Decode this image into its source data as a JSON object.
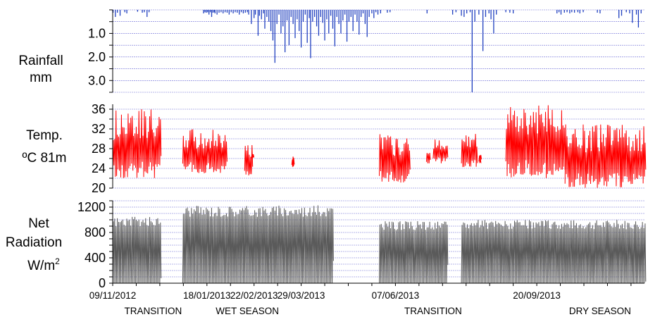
{
  "chart_data": [
    {
      "type": "bar",
      "panel_label_lines": [
        "Rainfall",
        "mm"
      ],
      "yticks": [
        "1.0",
        "2.0",
        "3.0"
      ],
      "ytick_values": [
        1.0,
        2.0,
        3.0
      ],
      "ylim": [
        0,
        3.5
      ],
      "inverted": true,
      "grid": true,
      "series": [
        {
          "color": "#1f3fbf",
          "points": [
            [
              0.3,
              0.12
            ],
            [
              2.0,
              0.3
            ],
            [
              3.5,
              0.12
            ],
            [
              5.5,
              0.25
            ],
            [
              9.0,
              0.1
            ],
            [
              10.5,
              0.15
            ],
            [
              18.5,
              0.08
            ],
            [
              22.0,
              0.12
            ],
            [
              23.5,
              0.1
            ],
            [
              25.5,
              0.3
            ],
            [
              27.0,
              0.1
            ],
            [
              67.5,
              0.15
            ],
            [
              68.5,
              0.1
            ],
            [
              69.5,
              0.12
            ],
            [
              70.5,
              0.1
            ],
            [
              71.5,
              0.2
            ],
            [
              72.5,
              0.1
            ],
            [
              73.5,
              0.3
            ],
            [
              74.5,
              0.12
            ],
            [
              75.5,
              0.1
            ],
            [
              76.0,
              0.15
            ],
            [
              77.5,
              0.2
            ],
            [
              79.0,
              0.12
            ],
            [
              80.5,
              0.1
            ],
            [
              82.0,
              0.15
            ],
            [
              83.5,
              0.1
            ],
            [
              85.0,
              0.12
            ],
            [
              86.5,
              0.2
            ],
            [
              88.0,
              0.1
            ],
            [
              89.5,
              0.15
            ],
            [
              91.0,
              0.1
            ],
            [
              92.5,
              0.12
            ],
            [
              94.0,
              0.2
            ],
            [
              95.5,
              0.1
            ],
            [
              97.0,
              0.15
            ],
            [
              98.5,
              0.12
            ],
            [
              100.0,
              0.1
            ],
            [
              101.0,
              0.2
            ],
            [
              103.0,
              0.6
            ],
            [
              105.0,
              0.35
            ],
            [
              106.0,
              0.2
            ],
            [
              108.0,
              1.1
            ],
            [
              109.0,
              0.25
            ],
            [
              110.5,
              0.4
            ],
            [
              112.0,
              0.15
            ],
            [
              113.0,
              0.8
            ],
            [
              114.5,
              0.3
            ],
            [
              116.0,
              0.5
            ],
            [
              117.5,
              0.9
            ],
            [
              119.0,
              1.3
            ],
            [
              120.5,
              2.25
            ],
            [
              122.0,
              0.6
            ],
            [
              123.5,
              0.2
            ],
            [
              125.0,
              1.0
            ],
            [
              126.5,
              0.7
            ],
            [
              128.0,
              1.8
            ],
            [
              129.5,
              0.45
            ],
            [
              131.0,
              1.5
            ],
            [
              132.5,
              0.3
            ],
            [
              134.0,
              0.6
            ],
            [
              135.5,
              1.2
            ],
            [
              137.0,
              0.4
            ],
            [
              138.5,
              0.9
            ],
            [
              140.0,
              1.6
            ],
            [
              141.5,
              0.5
            ],
            [
              143.0,
              0.2
            ],
            [
              144.5,
              1.4
            ],
            [
              146.0,
              0.35
            ],
            [
              147.0,
              2.05
            ],
            [
              148.5,
              0.5
            ],
            [
              150.0,
              0.3
            ],
            [
              151.5,
              0.7
            ],
            [
              153.0,
              1.1
            ],
            [
              154.5,
              0.3
            ],
            [
              156.0,
              0.55
            ],
            [
              157.5,
              1.3
            ],
            [
              159.0,
              0.4
            ],
            [
              160.5,
              1.0
            ],
            [
              162.0,
              0.25
            ],
            [
              163.5,
              0.8
            ],
            [
              165.0,
              1.55
            ],
            [
              166.5,
              0.3
            ],
            [
              168.0,
              0.6
            ],
            [
              169.5,
              1.0
            ],
            [
              171.0,
              0.45
            ],
            [
              172.5,
              0.2
            ],
            [
              174.0,
              1.35
            ],
            [
              175.5,
              0.5
            ],
            [
              177.0,
              0.3
            ],
            [
              178.5,
              0.9
            ],
            [
              180.0,
              0.2
            ],
            [
              181.5,
              0.5
            ],
            [
              183.0,
              1.05
            ],
            [
              184.5,
              0.3
            ],
            [
              186.0,
              0.15
            ],
            [
              187.5,
              0.6
            ],
            [
              189.0,
              1.15
            ],
            [
              190.5,
              0.3
            ],
            [
              192.5,
              0.15
            ],
            [
              194.0,
              0.35
            ],
            [
              195.5,
              0.1
            ],
            [
              197.0,
              0.2
            ],
            [
              199.0,
              0.15
            ],
            [
              204.0,
              0.12
            ],
            [
              206.0,
              0.1
            ],
            [
              233.5,
              0.15
            ],
            [
              252.5,
              0.2
            ],
            [
              255.0,
              0.1
            ],
            [
              259.0,
              0.25
            ],
            [
              261.0,
              0.3
            ],
            [
              263.0,
              0.15
            ],
            [
              265.5,
              0.1
            ],
            [
              267.0,
              3.5
            ],
            [
              269.0,
              0.5
            ],
            [
              272.0,
              0.2
            ],
            [
              275.0,
              1.75
            ],
            [
              277.0,
              0.3
            ],
            [
              279.5,
              0.15
            ],
            [
              281.0,
              0.4
            ],
            [
              283.0,
              1.0
            ],
            [
              285.0,
              0.2
            ],
            [
              292.0,
              0.1
            ],
            [
              295.0,
              0.12
            ],
            [
              297.5,
              0.15
            ],
            [
              330.0,
              0.15
            ],
            [
              331.5,
              0.1
            ],
            [
              333.0,
              0.2
            ],
            [
              335.5,
              0.12
            ],
            [
              337.5,
              0.1
            ],
            [
              339.5,
              0.15
            ],
            [
              341.0,
              0.1
            ],
            [
              343.0,
              0.12
            ],
            [
              345.5,
              0.1
            ],
            [
              347.0,
              0.15
            ],
            [
              349.5,
              0.1
            ],
            [
              360.0,
              0.12
            ],
            [
              362.0,
              0.15
            ],
            [
              376.0,
              0.35
            ],
            [
              378.0,
              0.25
            ],
            [
              381.5,
              0.1
            ],
            [
              384.0,
              0.15
            ],
            [
              386.0,
              0.55
            ],
            [
              389.0,
              0.2
            ],
            [
              390.5,
              0.75
            ],
            [
              392.5,
              0.15
            ]
          ]
        }
      ]
    },
    {
      "type": "line",
      "panel_label_lines": [
        "Temp.",
        "ºC 81m"
      ],
      "yticks": [
        "20",
        "24",
        "28",
        "32",
        "36"
      ],
      "ytick_values": [
        20,
        24,
        28,
        32,
        36
      ],
      "ylim": [
        20,
        37
      ],
      "grid": true,
      "series": [
        {
          "color": "#ff0000",
          "segments": [
            {
              "start": 0,
              "end": 35,
              "min": 22,
              "max": 36,
              "period": 1
            },
            {
              "start": 52,
              "end": 84,
              "min": 23,
              "max": 32,
              "period": 1
            },
            {
              "start": 98,
              "end": 103,
              "min": 22,
              "max": 29,
              "period": 1
            },
            {
              "start": 103,
              "end": 104,
              "min": 26,
              "max": 27,
              "period": 1
            },
            {
              "start": 133,
              "end": 134,
              "min": 24,
              "max": 27,
              "period": 1
            },
            {
              "start": 198,
              "end": 220,
              "min": 21,
              "max": 31,
              "period": 1
            },
            {
              "start": 233,
              "end": 235,
              "min": 25,
              "max": 28,
              "period": 1
            },
            {
              "start": 238,
              "end": 248,
              "min": 25,
              "max": 30,
              "period": 1
            },
            {
              "start": 259,
              "end": 270,
              "min": 24,
              "max": 31,
              "period": 1
            },
            {
              "start": 272,
              "end": 273,
              "min": 25,
              "max": 27,
              "period": 1
            },
            {
              "start": 292,
              "end": 336,
              "min": 22,
              "max": 37,
              "period": 1
            },
            {
              "start": 336,
              "end": 395,
              "min": 20,
              "max": 33,
              "period": 1
            }
          ]
        }
      ]
    },
    {
      "type": "line",
      "panel_label_lines": [
        "Net",
        "Radiation",
        "W/m"
      ],
      "panel_label_superscript": "2",
      "yticks": [
        "0",
        "400",
        "800",
        "1200"
      ],
      "ytick_values": [
        0,
        400,
        800,
        1200
      ],
      "ylim": [
        0,
        1300
      ],
      "grid": true,
      "series": [
        {
          "color": "#5a5a5a",
          "segments": [
            {
              "start": 0,
              "end": 35,
              "min": 0,
              "max": 1050,
              "period": 1
            },
            {
              "start": 52,
              "end": 163,
              "min": 0,
              "max": 1230,
              "period": 1
            },
            {
              "start": 198,
              "end": 248,
              "min": 0,
              "max": 980,
              "period": 1
            },
            {
              "start": 259,
              "end": 395,
              "min": 0,
              "max": 1000,
              "period": 1
            }
          ]
        }
      ],
      "x_tick_labels": [
        "09/11/2012",
        "18/01/2013",
        "22/02/2013",
        "29/03/2013",
        "07/06/2013",
        "20/09/2013"
      ],
      "x_tick_values": [
        0,
        70,
        105,
        140,
        210,
        315
      ],
      "season_labels": [
        "TRANSITION",
        "WET SEASON",
        "TRANSITION",
        "DRY SEASON"
      ],
      "season_positions": [
        30,
        100,
        238,
        362
      ]
    }
  ],
  "colors": {
    "grid": "#6b6bd6",
    "axis": "#000000"
  }
}
